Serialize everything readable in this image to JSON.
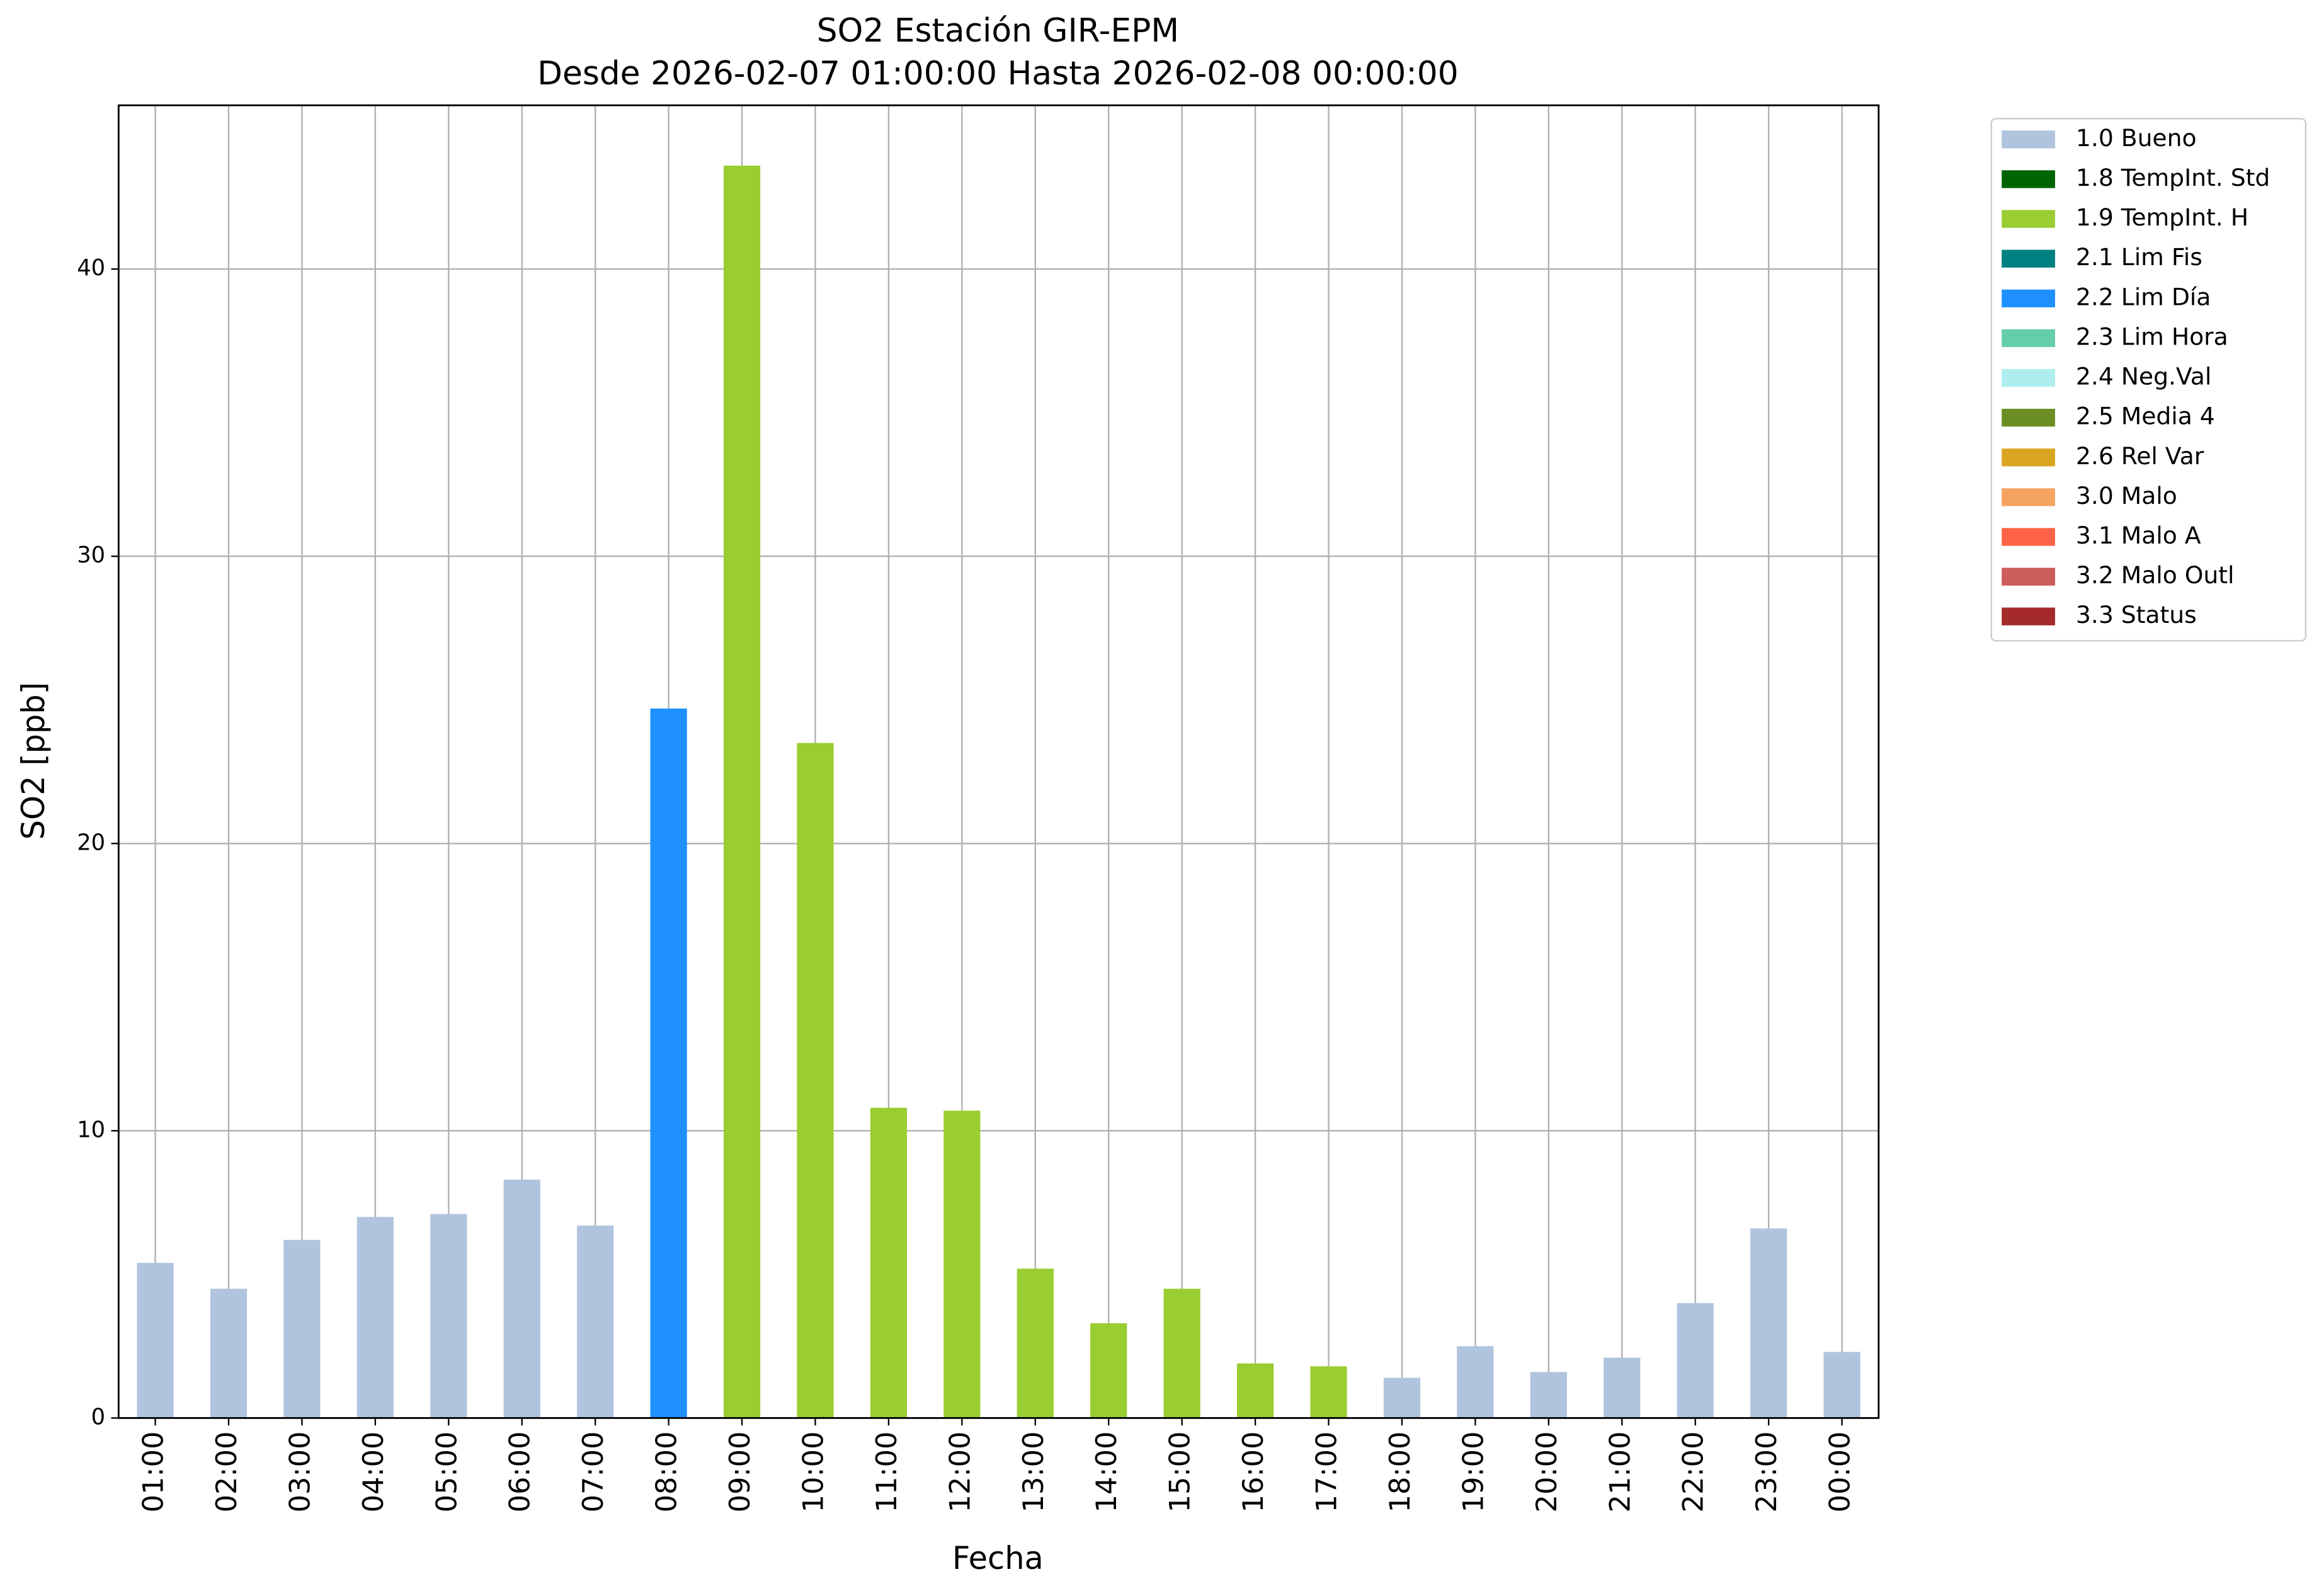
{
  "chart_data": {
    "type": "bar",
    "stacked": true,
    "title": "SO2 Estación GIR-EPM",
    "subtitle": "Desde 2026-02-07 01:00:00 Hasta 2026-02-08 00:00:00",
    "x_label": "Fecha",
    "y_label": "SO2 [ppb]",
    "categories": [
      "01:00",
      "02:00",
      "03:00",
      "04:00",
      "05:00",
      "06:00",
      "07:00",
      "08:00",
      "09:00",
      "10:00",
      "11:00",
      "12:00",
      "13:00",
      "14:00",
      "15:00",
      "16:00",
      "17:00",
      "18:00",
      "19:00",
      "20:00",
      "21:00",
      "22:00",
      "23:00",
      "00:00"
    ],
    "series": [
      {
        "name": "1.0 Bueno",
        "color": "#b0c4de",
        "values": [
          5.4,
          4.5,
          6.2,
          7.0,
          7.1,
          8.3,
          6.7,
          null,
          null,
          null,
          null,
          null,
          null,
          null,
          null,
          null,
          null,
          1.4,
          2.5,
          1.6,
          2.1,
          4.0,
          6.6,
          2.3
        ]
      },
      {
        "name": "1.8 TempInt. Std",
        "color": "#006400",
        "values": [
          null,
          null,
          null,
          null,
          null,
          null,
          null,
          null,
          null,
          null,
          null,
          null,
          null,
          null,
          null,
          null,
          null,
          null,
          null,
          null,
          null,
          null,
          null,
          null
        ]
      },
      {
        "name": "1.9 TempInt. H",
        "color": "#9acd32",
        "values": [
          null,
          null,
          null,
          null,
          null,
          null,
          null,
          null,
          43.6,
          23.5,
          10.8,
          10.7,
          5.2,
          3.3,
          4.5,
          1.9,
          1.8,
          null,
          null,
          null,
          null,
          null,
          null,
          null
        ]
      },
      {
        "name": "2.1 Lim Fis",
        "color": "#008080",
        "values": [
          null,
          null,
          null,
          null,
          null,
          null,
          null,
          null,
          null,
          null,
          null,
          null,
          null,
          null,
          null,
          null,
          null,
          null,
          null,
          null,
          null,
          null,
          null,
          null
        ]
      },
      {
        "name": "2.2 Lim Día",
        "color": "#1e90ff",
        "values": [
          null,
          null,
          null,
          null,
          null,
          null,
          null,
          24.7,
          null,
          null,
          null,
          null,
          null,
          null,
          null,
          null,
          null,
          null,
          null,
          null,
          null,
          null,
          null,
          null
        ]
      },
      {
        "name": "2.3 Lim Hora",
        "color": "#66cdaa",
        "values": [
          null,
          null,
          null,
          null,
          null,
          null,
          null,
          null,
          null,
          null,
          null,
          null,
          null,
          null,
          null,
          null,
          null,
          null,
          null,
          null,
          null,
          null,
          null,
          null
        ]
      },
      {
        "name": "2.4 Neg.Val",
        "color": "#afeeee",
        "values": [
          null,
          null,
          null,
          null,
          null,
          null,
          null,
          null,
          null,
          null,
          null,
          null,
          null,
          null,
          null,
          null,
          null,
          null,
          null,
          null,
          null,
          null,
          null,
          null
        ]
      },
      {
        "name": "2.5 Media 4",
        "color": "#6b8e23",
        "values": [
          null,
          null,
          null,
          null,
          null,
          null,
          null,
          null,
          null,
          null,
          null,
          null,
          null,
          null,
          null,
          null,
          null,
          null,
          null,
          null,
          null,
          null,
          null,
          null
        ]
      },
      {
        "name": "2.6 Rel Var",
        "color": "#daa520",
        "values": [
          null,
          null,
          null,
          null,
          null,
          null,
          null,
          null,
          null,
          null,
          null,
          null,
          null,
          null,
          null,
          null,
          null,
          null,
          null,
          null,
          null,
          null,
          null,
          null
        ]
      },
      {
        "name": "3.0 Malo",
        "color": "#f4a460",
        "values": [
          null,
          null,
          null,
          null,
          null,
          null,
          null,
          null,
          null,
          null,
          null,
          null,
          null,
          null,
          null,
          null,
          null,
          null,
          null,
          null,
          null,
          null,
          null,
          null
        ]
      },
      {
        "name": "3.1 Malo A",
        "color": "#ff6347",
        "values": [
          null,
          null,
          null,
          null,
          null,
          null,
          null,
          null,
          null,
          null,
          null,
          null,
          null,
          null,
          null,
          null,
          null,
          null,
          null,
          null,
          null,
          null,
          null,
          null
        ]
      },
      {
        "name": "3.2 Malo Outl",
        "color": "#cd5c5c",
        "values": [
          null,
          null,
          null,
          null,
          null,
          null,
          null,
          null,
          null,
          null,
          null,
          null,
          null,
          null,
          null,
          null,
          null,
          null,
          null,
          null,
          null,
          null,
          null,
          null
        ]
      },
      {
        "name": "3.3 Status",
        "color": "#a52a2a",
        "values": [
          null,
          null,
          null,
          null,
          null,
          null,
          null,
          null,
          null,
          null,
          null,
          null,
          null,
          null,
          null,
          null,
          null,
          null,
          null,
          null,
          null,
          null,
          null,
          null
        ]
      }
    ],
    "ylim": [
      0,
      45.7
    ],
    "yticks": [
      0,
      10,
      20,
      30,
      40
    ],
    "grid": true,
    "legend": "outside-right"
  }
}
